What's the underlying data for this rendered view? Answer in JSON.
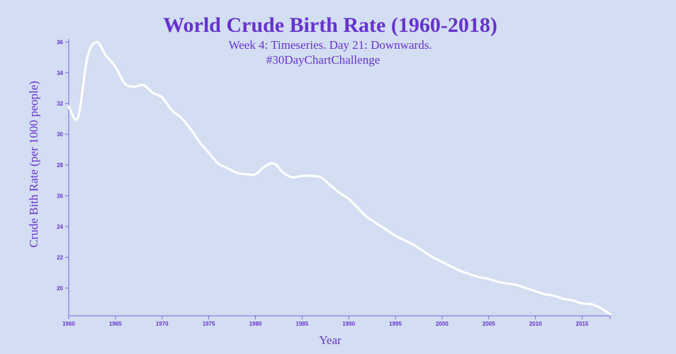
{
  "chart_data": {
    "type": "line",
    "title": "World Crude Birth Rate (1960-2018)",
    "subtitle_lines": [
      "Week 4: Timeseries. Day 21: Downwards.",
      "#30DayChartChallenge"
    ],
    "xlabel": "Year",
    "ylabel": "Crude Bith Rate (per 1000 people)",
    "xlim": [
      1960,
      2018
    ],
    "ylim": [
      18.2,
      36.2
    ],
    "x_ticks": [
      "1960",
      "1965",
      "1970",
      "1975",
      "1980",
      "1985",
      "1990",
      "1995",
      "2000",
      "2005",
      "2010",
      "2015"
    ],
    "y_ticks": [
      "20",
      "22",
      "24",
      "26",
      "28",
      "30",
      "32",
      "34",
      "36"
    ],
    "grid": false,
    "legend": "none",
    "colors": {
      "background": "#d3def2",
      "text": "#6633cc",
      "axis": "#7b68d8",
      "line": "#ffffff"
    },
    "x": [
      1960,
      1961,
      1962,
      1963,
      1964,
      1965,
      1966,
      1967,
      1968,
      1969,
      1970,
      1971,
      1972,
      1973,
      1974,
      1975,
      1976,
      1977,
      1978,
      1979,
      1980,
      1981,
      1982,
      1983,
      1984,
      1985,
      1986,
      1987,
      1988,
      1989,
      1990,
      1991,
      1992,
      1993,
      1994,
      1995,
      1996,
      1997,
      1998,
      1999,
      2000,
      2001,
      2002,
      2003,
      2004,
      2005,
      2006,
      2007,
      2008,
      2009,
      2010,
      2011,
      2012,
      2013,
      2014,
      2015,
      2016,
      2017,
      2018
    ],
    "y": [
      31.8,
      31.1,
      35.0,
      36.0,
      35.1,
      34.4,
      33.3,
      33.1,
      33.2,
      32.7,
      32.4,
      31.6,
      31.1,
      30.4,
      29.5,
      28.8,
      28.1,
      27.8,
      27.5,
      27.4,
      27.4,
      27.9,
      28.1,
      27.5,
      27.2,
      27.3,
      27.3,
      27.2,
      26.7,
      26.2,
      25.8,
      25.2,
      24.6,
      24.2,
      23.8,
      23.4,
      23.1,
      22.8,
      22.4,
      22.0,
      21.7,
      21.4,
      21.1,
      20.9,
      20.7,
      20.6,
      20.4,
      20.3,
      20.2,
      20.0,
      19.8,
      19.6,
      19.5,
      19.3,
      19.2,
      19.0,
      18.95,
      18.7,
      18.3
    ]
  }
}
